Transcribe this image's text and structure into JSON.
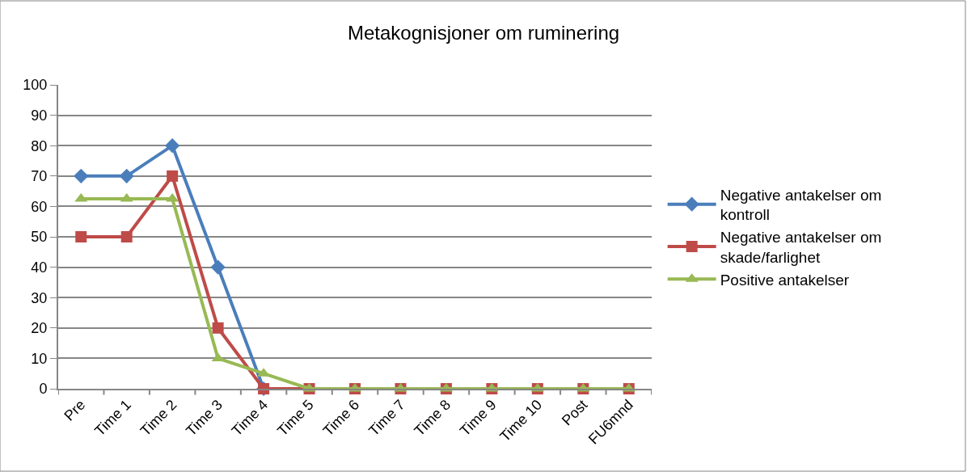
{
  "chart_data": {
    "type": "line",
    "title": "Metakognisjoner om ruminering",
    "categories": [
      "Pre",
      "Time 1",
      "Time 2",
      "Time 3",
      "Time 4",
      "Time 5",
      "Time 6",
      "Time 7",
      "Time 8",
      "Time 9",
      "Time 10",
      "Post",
      "FU6mnd"
    ],
    "series": [
      {
        "name": "Negative antakelser om kontroll",
        "color": "#4a7ebb",
        "marker": "diamond",
        "values": [
          70,
          70,
          80,
          40,
          0,
          null,
          null,
          null,
          null,
          null,
          null,
          null,
          null
        ]
      },
      {
        "name": "Negative antakelser om skade/farlighet",
        "color": "#be4b48",
        "marker": "square",
        "values": [
          50,
          50,
          70,
          20,
          0,
          0,
          0,
          0,
          0,
          0,
          0,
          0,
          0
        ]
      },
      {
        "name": "Positive antakelser",
        "color": "#98b954",
        "marker": "triangle",
        "values": [
          62.5,
          62.5,
          62.5,
          10,
          5,
          0,
          0,
          0,
          0,
          0,
          0,
          0,
          0
        ]
      }
    ],
    "ylim": [
      0,
      100
    ],
    "yticks": [
      0,
      10,
      20,
      30,
      40,
      50,
      60,
      70,
      80,
      90,
      100
    ],
    "grid": "y",
    "legend": "right",
    "line_style": "solid"
  }
}
